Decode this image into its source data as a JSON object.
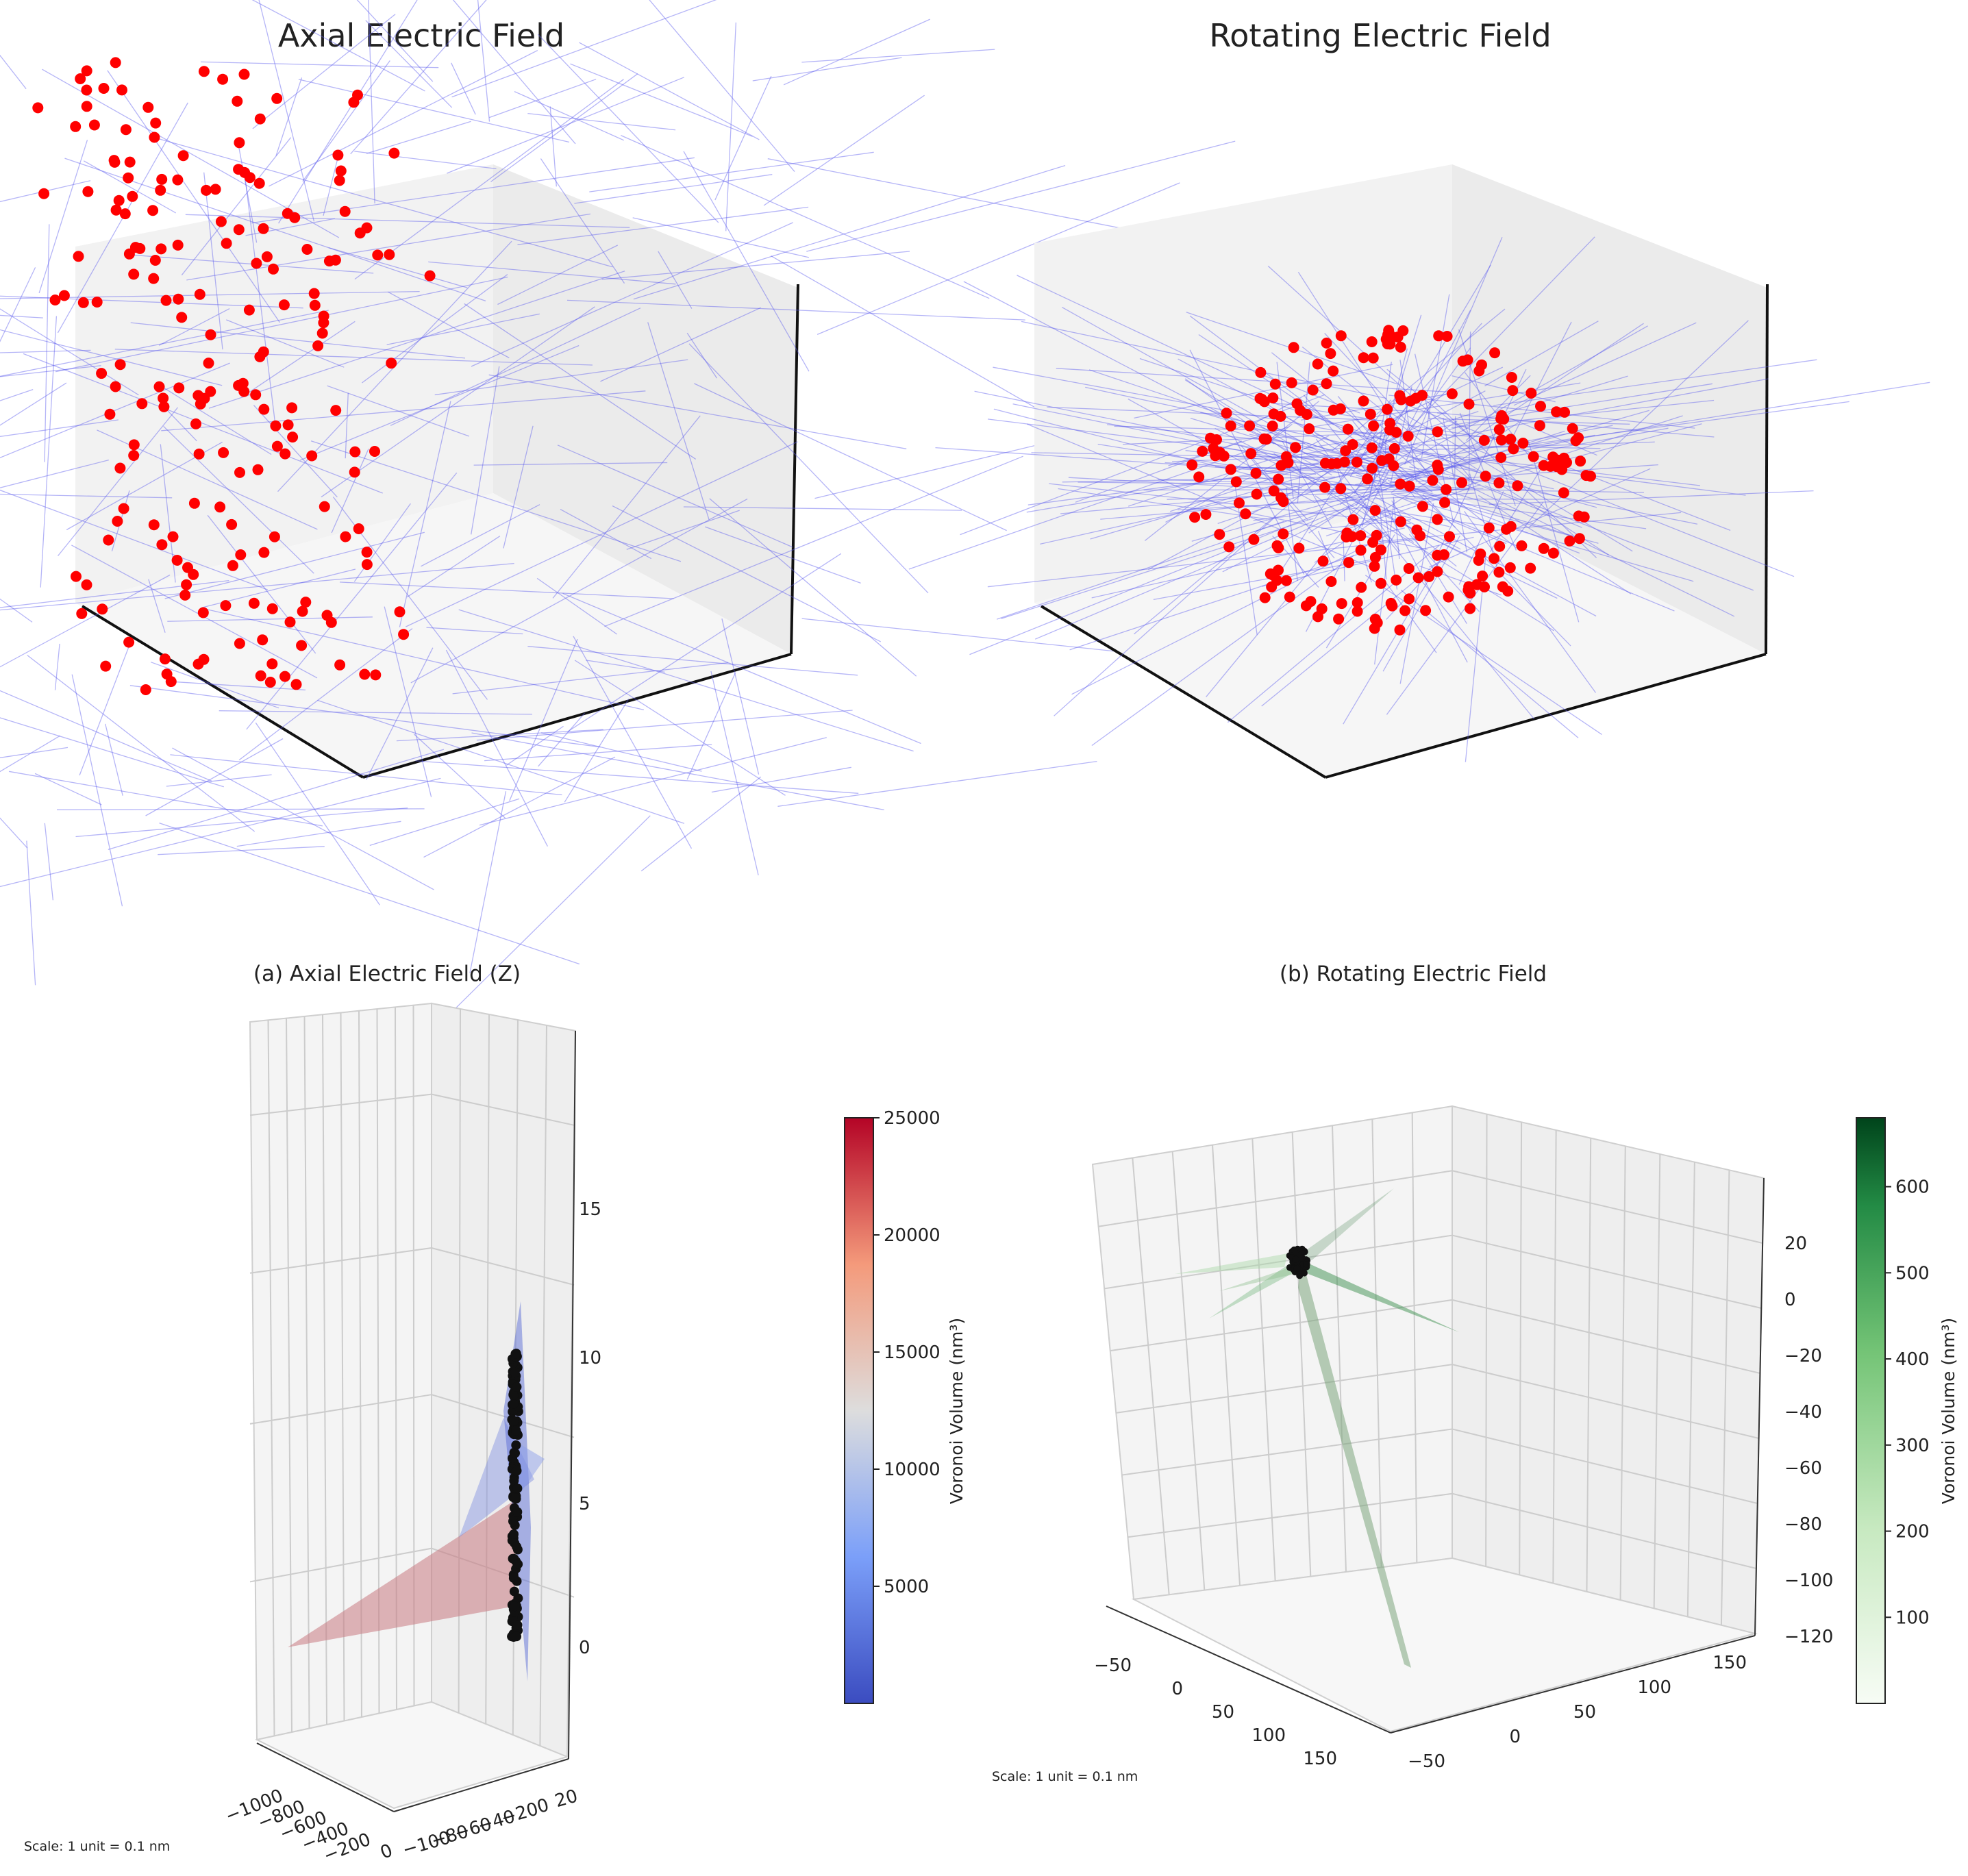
{
  "chart_data": [
    {
      "type": "scatter",
      "title": "Axial Electric Field",
      "view": "3d",
      "marker_color": "#ff0000",
      "line_color": "#5a5aee",
      "distribution": "vertical column of particles elongated along z",
      "grid": false
    },
    {
      "type": "scatter",
      "title": "Rotating Electric Field",
      "view": "3d",
      "marker_color": "#ff0000",
      "line_color": "#5a5aee",
      "distribution": "compact spherical cluster of particles",
      "grid": false
    },
    {
      "type": "scatter",
      "title": "(a) Axial Electric Field (Z)",
      "view": "3d",
      "grid": true,
      "marker_color": "#111111",
      "z_ticks": [
        "0",
        "5",
        "10",
        "15"
      ],
      "x_ticks": [
        "−1000",
        "−800",
        "−600",
        "−400",
        "−200",
        "0"
      ],
      "y_ticks": [
        "−100",
        "−80",
        "−60",
        "−40",
        "−20",
        "0",
        "20"
      ],
      "colorbar": {
        "label": "Voronoi Volume (nm³)",
        "colormap": "coolwarm",
        "ticks": [
          "5000",
          "10000",
          "15000",
          "20000",
          "25000"
        ],
        "range": [
          0,
          25000
        ],
        "low_color": "#3b4cc0",
        "mid_color": "#dddddd",
        "high_color": "#b40426"
      },
      "scale_note": "Scale: 1 unit = 0.1 nm"
    },
    {
      "type": "scatter",
      "title": "(b) Rotating Electric Field",
      "view": "3d",
      "grid": true,
      "marker_color": "#111111",
      "z_ticks": [
        "20",
        "0",
        "−20",
        "−40",
        "−60",
        "−80",
        "−100",
        "−120"
      ],
      "x_ticks": [
        "−50",
        "0",
        "50",
        "100",
        "150"
      ],
      "y_ticks": [
        "−50",
        "0",
        "50",
        "100",
        "150"
      ],
      "colorbar": {
        "label": "Voronoi Volume (nm³)",
        "colormap": "Greens",
        "ticks": [
          "100",
          "200",
          "300",
          "400",
          "500",
          "600"
        ],
        "range": [
          0,
          680
        ],
        "low_color": "#f7fcf5",
        "high_color": "#00441b"
      },
      "scale_note": "Scale: 1 unit = 0.1 nm"
    }
  ]
}
